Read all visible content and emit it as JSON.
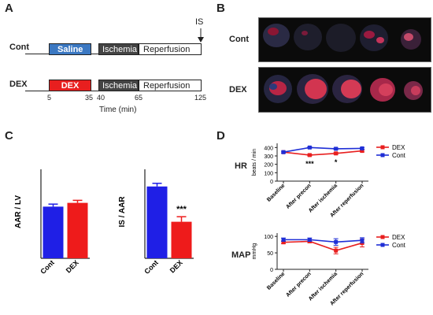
{
  "panelA": {
    "letter": "A",
    "is_label": "IS",
    "rows": [
      {
        "label": "Cont",
        "treatment": "Saline",
        "treatment_color": "#3b78c2",
        "ischemia": "Ischemia",
        "reperfusion": "Reperfusion"
      },
      {
        "label": "DEX",
        "treatment": "DEX",
        "treatment_color": "#e81f1f",
        "ischemia": "Ischemia",
        "reperfusion": "Reperfusion"
      }
    ],
    "ticks": [
      "5",
      "35",
      "40",
      "65",
      "125"
    ],
    "xlabel": "Time (min)"
  },
  "panelB": {
    "letter": "B",
    "rows": [
      "Cont",
      "DEX"
    ]
  },
  "panelC": {
    "letter": "C"
  },
  "panelD": {
    "letter": "D",
    "row_labels": [
      "HR",
      "MAP"
    ]
  },
  "chart_data": [
    {
      "type": "bar",
      "categories": [
        "Cont",
        "DEX"
      ],
      "values": [
        41,
        44
      ],
      "errors": [
        2,
        2
      ],
      "colors": [
        "#1f1fe6",
        "#ee1b1b"
      ],
      "ylabel": "AAR / LV",
      "ylim": [
        0,
        80
      ],
      "annotations": []
    },
    {
      "type": "bar",
      "categories": [
        "Cont",
        "DEX"
      ],
      "values": [
        57,
        29
      ],
      "errors": [
        2.5,
        4
      ],
      "colors": [
        "#1f1fe6",
        "#ee1b1b"
      ],
      "ylabel": "IS / AAR",
      "ylim": [
        0,
        80
      ],
      "annotations": [
        "",
        "***"
      ]
    },
    {
      "type": "line",
      "categories": [
        "Baseline",
        "After precon",
        "After ischemia",
        "After reperfusion"
      ],
      "series": [
        {
          "name": "DEX",
          "color": "#e81f1f",
          "values": [
            345,
            310,
            330,
            360
          ],
          "errors": [
            10,
            10,
            12,
            12
          ]
        },
        {
          "name": "Cont",
          "color": "#1f2fd6",
          "values": [
            345,
            400,
            385,
            390
          ],
          "errors": [
            10,
            8,
            10,
            10
          ]
        }
      ],
      "annotations": [
        {
          "x": 1,
          "text": "***"
        },
        {
          "x": 2,
          "text": "*"
        }
      ],
      "ylabel": "beats / min",
      "ylim": [
        0,
        450
      ],
      "yticks": [
        0,
        100,
        200,
        300,
        400
      ],
      "legend": "right"
    },
    {
      "type": "line",
      "categories": [
        "Baseline",
        "After precon",
        "After ischemia",
        "After reperfusion"
      ],
      "series": [
        {
          "name": "DEX",
          "color": "#e81f1f",
          "values": [
            82,
            85,
            57,
            80
          ],
          "errors": [
            4,
            4,
            10,
            12
          ]
        },
        {
          "name": "Cont",
          "color": "#1f2fd6",
          "values": [
            90,
            90,
            83,
            88
          ],
          "errors": [
            5,
            5,
            10,
            8
          ]
        }
      ],
      "ylabel": "mmHg",
      "ylim": [
        0,
        110
      ],
      "yticks": [
        0,
        50,
        100
      ],
      "legend": "right"
    }
  ]
}
